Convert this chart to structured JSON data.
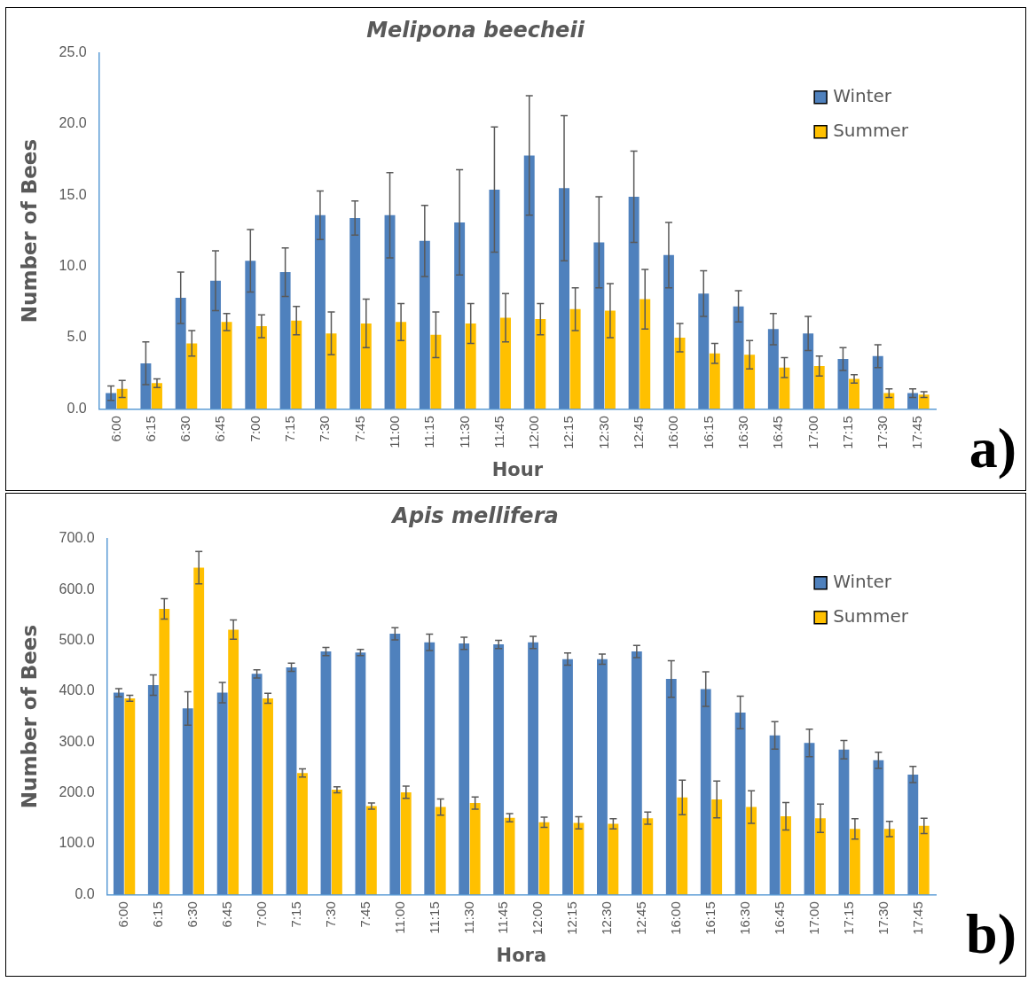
{
  "chart_data": [
    {
      "type": "bar",
      "title": "Melipona beecheii",
      "xlabel": "Hour",
      "ylabel": "Number of Bees",
      "categories": [
        "6:00",
        "6:15",
        "6:30",
        "6:45",
        "7:00",
        "7:15",
        "7:30",
        "7:45",
        "11:00",
        "11:15",
        "11:30",
        "11:45",
        "12:00",
        "12:15",
        "12:30",
        "12:45",
        "16:00",
        "16:15",
        "16:30",
        "16:45",
        "17:00",
        "17:15",
        "17:30",
        "17:45"
      ],
      "series": [
        {
          "name": "Winter",
          "color": "#4f81bd",
          "values": [
            1.1,
            3.2,
            7.8,
            9.0,
            10.4,
            9.6,
            13.6,
            13.4,
            13.6,
            11.8,
            13.1,
            15.4,
            17.8,
            15.5,
            11.7,
            14.9,
            10.8,
            8.1,
            7.2,
            5.6,
            5.3,
            3.5,
            3.7,
            1.1
          ],
          "errors": [
            0.5,
            1.5,
            1.8,
            2.1,
            2.2,
            1.7,
            1.7,
            1.2,
            3.0,
            2.5,
            3.7,
            4.4,
            4.2,
            5.1,
            3.2,
            3.2,
            2.3,
            1.6,
            1.1,
            1.1,
            1.2,
            0.8,
            0.8,
            0.3
          ]
        },
        {
          "name": "Summer",
          "color": "#ffc000",
          "values": [
            1.4,
            1.8,
            4.6,
            6.1,
            5.8,
            6.2,
            5.3,
            6.0,
            6.1,
            5.2,
            6.0,
            6.4,
            6.3,
            7.0,
            6.9,
            7.7,
            5.0,
            3.9,
            3.8,
            2.9,
            3.0,
            2.1,
            1.1,
            1.0
          ],
          "errors": [
            0.6,
            0.3,
            0.9,
            0.6,
            0.8,
            1.0,
            1.5,
            1.7,
            1.3,
            1.6,
            1.4,
            1.7,
            1.1,
            1.5,
            1.9,
            2.1,
            1.0,
            0.7,
            1.0,
            0.7,
            0.7,
            0.3,
            0.3,
            0.2
          ]
        }
      ],
      "ylim": [
        0,
        25
      ],
      "yticks": [
        {
          "value": 0,
          "label": "0.0"
        },
        {
          "value": 5,
          "label": "5.0"
        },
        {
          "value": 10,
          "label": "10.0"
        },
        {
          "value": 15,
          "label": "15.0"
        },
        {
          "value": 20,
          "label": "20.0"
        },
        {
          "value": 25,
          "label": "25.0"
        }
      ],
      "grid": false,
      "legend": "top right",
      "annotations": [
        "a)"
      ]
    },
    {
      "type": "bar",
      "title": "Apis mellifera",
      "xlabel": "Hora",
      "ylabel": "Number of Bees",
      "categories": [
        "6:00",
        "6:15",
        "6:30",
        "6:45",
        "7:00",
        "7:15",
        "7:30",
        "7:45",
        "11:00",
        "11:15",
        "11:30",
        "11:45",
        "12:00",
        "12:15",
        "12:30",
        "12:45",
        "16:00",
        "16:15",
        "16:30",
        "16:45",
        "17:00",
        "17:15",
        "17:30",
        "17:45"
      ],
      "series": [
        {
          "name": "Winter",
          "color": "#4f81bd",
          "values": [
            397,
            412,
            366,
            397,
            434,
            447,
            478,
            476,
            513,
            496,
            494,
            492,
            496,
            463,
            463,
            478,
            424,
            404,
            358,
            313,
            298,
            285,
            264,
            236
          ],
          "errors": [
            8,
            20,
            33,
            20,
            8,
            8,
            8,
            6,
            12,
            16,
            12,
            8,
            12,
            12,
            10,
            12,
            36,
            34,
            32,
            27,
            27,
            18,
            16,
            16
          ]
        },
        {
          "name": "Summer",
          "color": "#ffc000",
          "values": [
            386,
            562,
            643,
            521,
            386,
            239,
            206,
            174,
            201,
            172,
            180,
            151,
            142,
            141,
            139,
            150,
            191,
            187,
            172,
            154,
            150,
            129,
            129,
            135
          ],
          "errors": [
            6,
            20,
            32,
            19,
            10,
            8,
            6,
            6,
            12,
            16,
            12,
            8,
            10,
            12,
            10,
            12,
            34,
            36,
            32,
            27,
            28,
            20,
            15,
            15
          ]
        }
      ],
      "ylim": [
        0,
        700
      ],
      "yticks": [
        {
          "value": 0,
          "label": "0.0"
        },
        {
          "value": 100,
          "label": "100.0"
        },
        {
          "value": 200,
          "label": "200.0"
        },
        {
          "value": 300,
          "label": "300.0"
        },
        {
          "value": 400,
          "label": "400.0"
        },
        {
          "value": 500,
          "label": "500.0"
        },
        {
          "value": 600,
          "label": "600.0"
        },
        {
          "value": 700,
          "label": "700.0"
        }
      ],
      "grid": false,
      "legend": "top right",
      "annotations": [
        "b)"
      ]
    }
  ]
}
